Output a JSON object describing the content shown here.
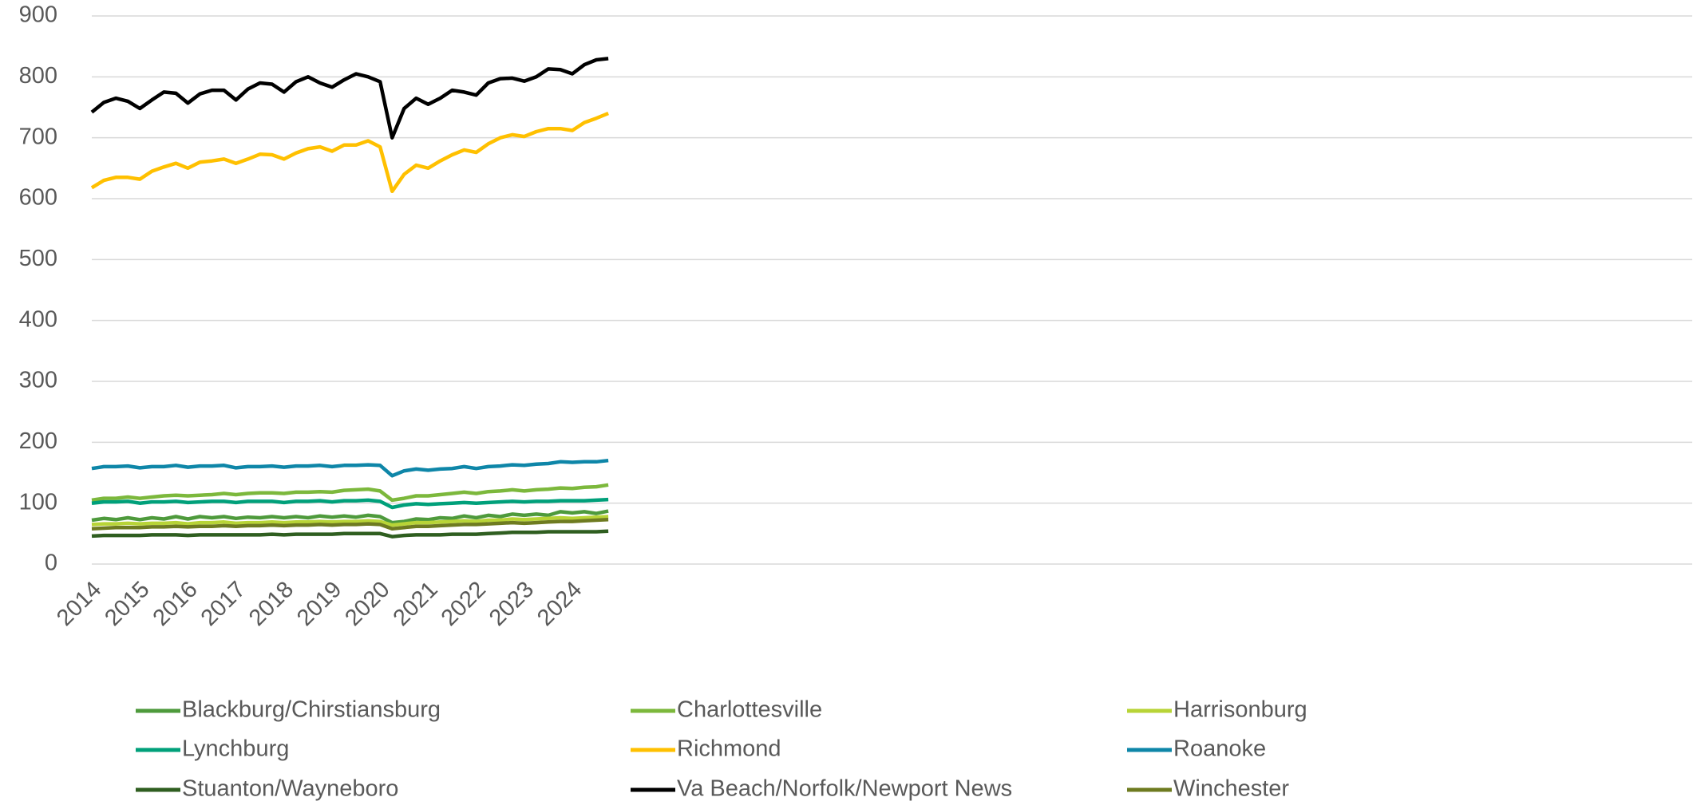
{
  "chart_data": {
    "type": "line",
    "categories": [
      "2014",
      null,
      null,
      null,
      "2015",
      null,
      null,
      null,
      "2016",
      null,
      null,
      null,
      "2017",
      null,
      null,
      null,
      "2018",
      null,
      null,
      null,
      "2019",
      null,
      null,
      null,
      "2020",
      null,
      null,
      null,
      "2021",
      null,
      null,
      null,
      "2022",
      null,
      null,
      null,
      "2023",
      null,
      null,
      null,
      "2024",
      null,
      null,
      null
    ],
    "ylim": [
      0,
      900
    ],
    "yticks": [
      0,
      100,
      200,
      300,
      400,
      500,
      600,
      700,
      800,
      900
    ],
    "grid": true,
    "legend": "bottom",
    "series": [
      {
        "name": "Blackburg/Chirstiansburg",
        "color": "#4e9a3c",
        "values": [
          72,
          75,
          73,
          76,
          73,
          76,
          74,
          78,
          74,
          78,
          76,
          78,
          75,
          77,
          76,
          78,
          76,
          78,
          76,
          79,
          77,
          79,
          77,
          80,
          78,
          68,
          70,
          74,
          73,
          76,
          75,
          79,
          76,
          80,
          78,
          82,
          80,
          82,
          80,
          86,
          84,
          86,
          83,
          87
        ]
      },
      {
        "name": "Charlottesville",
        "color": "#7cb83c",
        "values": [
          105,
          108,
          108,
          110,
          108,
          110,
          112,
          113,
          112,
          113,
          114,
          116,
          114,
          116,
          117,
          117,
          116,
          118,
          118,
          119,
          118,
          121,
          122,
          123,
          120,
          105,
          108,
          112,
          112,
          114,
          116,
          118,
          116,
          119,
          120,
          122,
          120,
          122,
          123,
          125,
          124,
          126,
          127,
          130
        ]
      },
      {
        "name": "Harrisonburg",
        "color": "#b8d437",
        "values": [
          65,
          66,
          66,
          67,
          66,
          67,
          67,
          68,
          66,
          68,
          68,
          69,
          67,
          68,
          68,
          69,
          68,
          69,
          69,
          70,
          69,
          70,
          70,
          71,
          70,
          64,
          66,
          68,
          68,
          69,
          70,
          71,
          70,
          72,
          72,
          74,
          73,
          74,
          75,
          76,
          75,
          76,
          77,
          78
        ]
      },
      {
        "name": "Lynchburg",
        "color": "#00a07a",
        "values": [
          100,
          102,
          102,
          103,
          100,
          102,
          102,
          103,
          101,
          102,
          103,
          103,
          101,
          103,
          103,
          103,
          101,
          103,
          103,
          104,
          102,
          104,
          104,
          105,
          103,
          93,
          97,
          99,
          98,
          99,
          100,
          101,
          100,
          101,
          102,
          103,
          102,
          103,
          103,
          104,
          104,
          104,
          105,
          106
        ]
      },
      {
        "name": "Richmond",
        "color": "#ffc000",
        "values": [
          618,
          630,
          635,
          635,
          632,
          645,
          652,
          658,
          650,
          660,
          662,
          665,
          658,
          665,
          673,
          672,
          665,
          675,
          682,
          685,
          678,
          688,
          688,
          695,
          685,
          612,
          640,
          655,
          650,
          662,
          672,
          680,
          676,
          690,
          700,
          705,
          702,
          710,
          715,
          715,
          712,
          725,
          732,
          740
        ]
      },
      {
        "name": "Roanoke",
        "color": "#0e86a8",
        "values": [
          157,
          160,
          160,
          161,
          158,
          160,
          160,
          162,
          159,
          161,
          161,
          162,
          158,
          160,
          160,
          161,
          159,
          161,
          161,
          162,
          160,
          162,
          162,
          163,
          162,
          145,
          153,
          156,
          154,
          156,
          157,
          160,
          157,
          160,
          161,
          163,
          162,
          164,
          165,
          168,
          167,
          168,
          168,
          170
        ]
      },
      {
        "name": "Stuanton/Wayneboro",
        "color": "#2f5e20",
        "values": [
          46,
          47,
          47,
          47,
          47,
          48,
          48,
          48,
          47,
          48,
          48,
          48,
          48,
          48,
          48,
          49,
          48,
          49,
          49,
          49,
          49,
          50,
          50,
          50,
          50,
          45,
          47,
          48,
          48,
          48,
          49,
          49,
          49,
          50,
          51,
          52,
          52,
          52,
          53,
          53,
          53,
          53,
          53,
          54
        ]
      },
      {
        "name": "Va Beach/Norfolk/Newport News",
        "color": "#000000",
        "values": [
          742,
          758,
          765,
          760,
          748,
          762,
          775,
          773,
          757,
          772,
          778,
          778,
          762,
          780,
          790,
          788,
          775,
          792,
          800,
          790,
          783,
          795,
          805,
          800,
          792,
          700,
          748,
          765,
          755,
          765,
          778,
          775,
          770,
          790,
          797,
          798,
          793,
          800,
          813,
          812,
          805,
          820,
          828,
          830
        ]
      },
      {
        "name": "Winchester",
        "color": "#6e7b20",
        "values": [
          58,
          59,
          60,
          60,
          60,
          61,
          61,
          62,
          61,
          62,
          62,
          63,
          62,
          63,
          63,
          64,
          63,
          64,
          64,
          65,
          64,
          65,
          65,
          66,
          65,
          58,
          60,
          62,
          62,
          63,
          64,
          65,
          65,
          66,
          67,
          68,
          67,
          68,
          69,
          70,
          70,
          71,
          72,
          73
        ]
      }
    ]
  }
}
